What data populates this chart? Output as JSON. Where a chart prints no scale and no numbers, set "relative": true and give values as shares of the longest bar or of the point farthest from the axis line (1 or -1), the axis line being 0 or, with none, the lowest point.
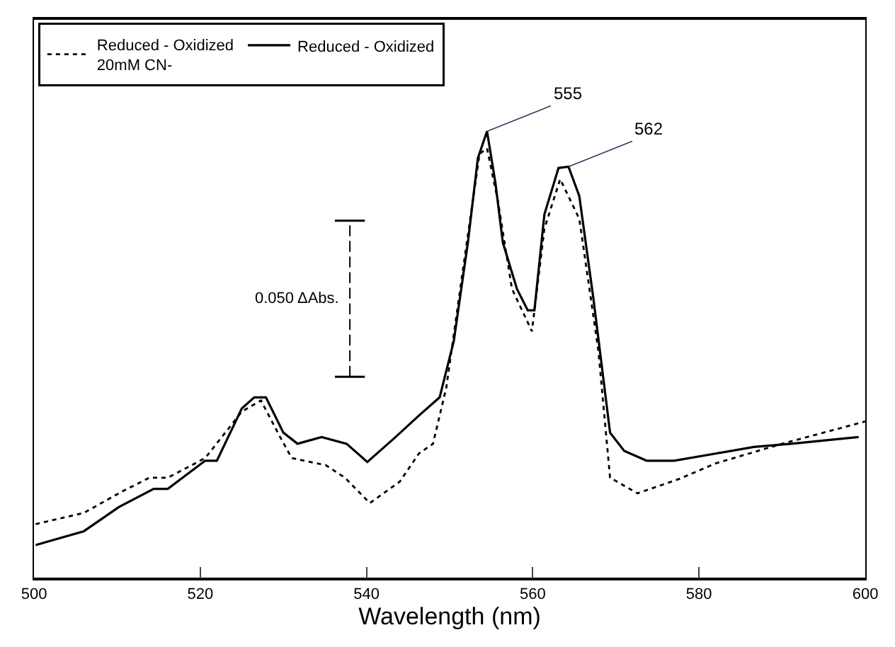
{
  "chart_data": {
    "type": "line",
    "relative": true,
    "xlabel": "Wavelength (nm)",
    "xlim": [
      500,
      600
    ],
    "xticks": [
      500,
      520,
      540,
      560,
      580,
      600
    ],
    "legend": "top left",
    "tick_labels": "x",
    "series": [
      {
        "name": "Reduced - Oxidized\n20mM CN-",
        "color": "#000000",
        "line_style": "dotted",
        "x": [
          500.2,
          506,
          510.5,
          513.9,
          516.1,
          520.6,
          525,
          527.3,
          529.5,
          531,
          535.1,
          537.4,
          540.4,
          544,
          546.3,
          548,
          549.6,
          551.9,
          553.6,
          554.5,
          555.8,
          557.5,
          559.9,
          561.4,
          563.3,
          565.6,
          567.9,
          569.3,
          572.6,
          577.6,
          582,
          590,
          600
        ],
        "values": [
          0.12,
          0.145,
          0.192,
          0.224,
          0.224,
          0.268,
          0.372,
          0.397,
          0.319,
          0.268,
          0.252,
          0.224,
          0.167,
          0.215,
          0.278,
          0.3,
          0.426,
          0.729,
          0.95,
          0.962,
          0.845,
          0.647,
          0.552,
          0.782,
          0.893,
          0.804,
          0.508,
          0.224,
          0.189,
          0.221,
          0.256,
          0.3,
          0.35
        ]
      },
      {
        "name": "Reduced - Oxidized",
        "color": "#000000",
        "line_style": "solid",
        "x": [
          500.2,
          506,
          510.2,
          514.4,
          516.1,
          520.6,
          522,
          525,
          526.5,
          527.9,
          530,
          531.7,
          534.6,
          537.6,
          540.1,
          543.5,
          546.3,
          548.8,
          550.5,
          552.2,
          553.4,
          554.5,
          555.5,
          556.4,
          558.1,
          559.4,
          560.2,
          561.4,
          563.1,
          564.3,
          565.6,
          567.3,
          569.3,
          571,
          573.7,
          577,
          582,
          586.6,
          591.1,
          599.2
        ],
        "values": [
          0.073,
          0.104,
          0.158,
          0.199,
          0.199,
          0.262,
          0.262,
          0.379,
          0.404,
          0.404,
          0.325,
          0.3,
          0.315,
          0.3,
          0.259,
          0.315,
          0.363,
          0.404,
          0.53,
          0.751,
          0.94,
          1.0,
          0.886,
          0.751,
          0.647,
          0.599,
          0.599,
          0.814,
          0.918,
          0.921,
          0.855,
          0.625,
          0.325,
          0.284,
          0.262,
          0.262,
          0.278,
          0.293,
          0.3,
          0.315
        ]
      }
    ],
    "annotations": [
      {
        "text": "555",
        "x": 554.5,
        "y": 1.0
      },
      {
        "text": "562",
        "x": 564.3,
        "y": 0.921
      },
      "0.050 ΔAbs."
    ]
  }
}
